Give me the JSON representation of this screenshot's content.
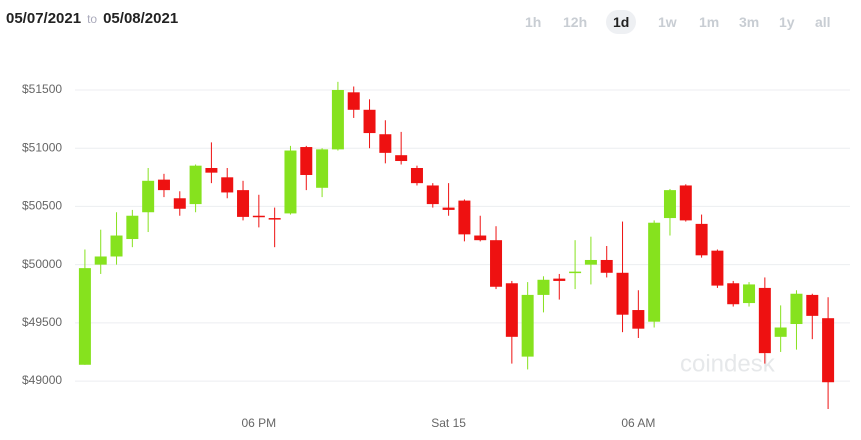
{
  "header": {
    "from": "05/07/2021",
    "to_word": "to",
    "to": "05/08/2021"
  },
  "ranges": [
    "1h",
    "12h",
    "1d",
    "1w",
    "1m",
    "3m",
    "1y",
    "all"
  ],
  "active_range": 2,
  "watermark": "coindesk",
  "chart_data": {
    "type": "candlestick",
    "categories": [
      null,
      null,
      null,
      null,
      null,
      null,
      null,
      null,
      null,
      null,
      null,
      "06 PM",
      null,
      null,
      null,
      null,
      null,
      null,
      null,
      null,
      null,
      null,
      null,
      "Sat 15",
      null,
      null,
      null,
      null,
      null,
      null,
      null,
      null,
      null,
      null,
      null,
      "06 AM",
      null,
      null,
      null,
      null,
      null,
      null,
      null,
      null,
      null,
      null,
      null,
      null
    ],
    "open": [
      49140,
      50000,
      50070,
      50220,
      50450,
      50730,
      50570,
      50520,
      50830,
      50750,
      50640,
      50420,
      50400,
      50440,
      51010,
      50660,
      50990,
      51480,
      51330,
      51120,
      50940,
      50830,
      50680,
      50490,
      50550,
      50250,
      50210,
      49840,
      49210,
      49740,
      49880,
      49930,
      50000,
      50040,
      49930,
      49610,
      49510,
      50400,
      50680,
      50350,
      50120,
      49840,
      49670,
      49800,
      49380,
      49490,
      49740,
      49540
    ],
    "high": [
      50130,
      50300,
      50450,
      50470,
      50830,
      50780,
      50630,
      50860,
      51050,
      50830,
      50720,
      50600,
      50490,
      51020,
      51020,
      51000,
      51570,
      51530,
      51420,
      51240,
      51140,
      50850,
      50700,
      50700,
      50560,
      50420,
      50330,
      49860,
      49850,
      49900,
      49920,
      50210,
      50240,
      50160,
      50370,
      49780,
      50380,
      50650,
      50690,
      50430,
      50130,
      49860,
      49850,
      49890,
      49650,
      49780,
      49750,
      49720
    ],
    "low": [
      49140,
      49920,
      50000,
      50150,
      50280,
      50580,
      50420,
      50450,
      50700,
      50570,
      50380,
      50320,
      50150,
      50430,
      50640,
      50580,
      50980,
      51260,
      51000,
      50870,
      50860,
      50680,
      50490,
      50420,
      50200,
      50200,
      49790,
      49150,
      49100,
      49590,
      49700,
      49790,
      49830,
      49890,
      49420,
      49370,
      49460,
      50250,
      50370,
      50060,
      49800,
      49640,
      49640,
      49150,
      49250,
      49270,
      49360,
      48760
    ],
    "close": [
      49970,
      50070,
      50250,
      50420,
      50720,
      50640,
      50480,
      50850,
      50790,
      50620,
      50410,
      50410,
      50390,
      50980,
      50770,
      50990,
      51500,
      51330,
      51130,
      50960,
      50890,
      50700,
      50520,
      50470,
      50260,
      50210,
      49810,
      49380,
      49740,
      49870,
      49860,
      49940,
      50040,
      49930,
      49570,
      49450,
      50360,
      50640,
      50380,
      50080,
      49820,
      49660,
      49830,
      49240,
      49460,
      49750,
      49560,
      48990
    ],
    "up_color": "#86e21e",
    "down_color": "#ee1111",
    "ylim": [
      48700,
      51700
    ],
    "yticks": [
      {
        "value": 49000,
        "label": "$49000"
      },
      {
        "value": 49500,
        "label": "$49500"
      },
      {
        "value": 50000,
        "label": "$50000"
      },
      {
        "value": 50500,
        "label": "$50500"
      },
      {
        "value": 51000,
        "label": "$51000"
      },
      {
        "value": 51500,
        "label": "$51500"
      }
    ],
    "grid": true
  }
}
